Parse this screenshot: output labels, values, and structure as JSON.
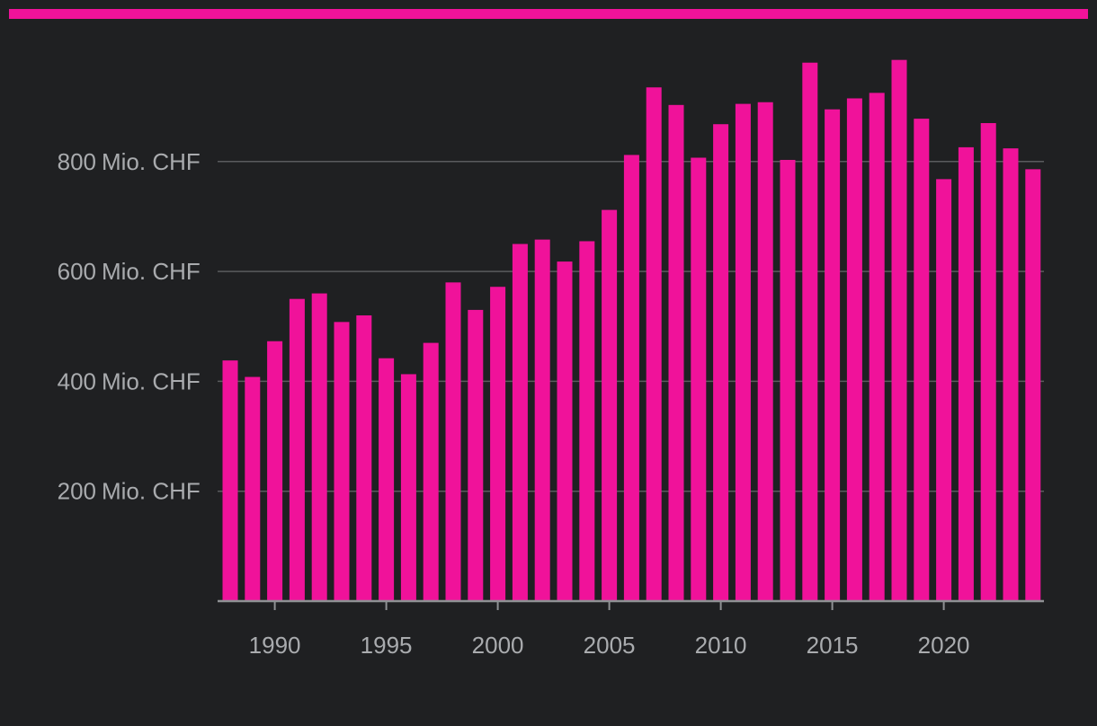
{
  "colors": {
    "background": "#1f2022",
    "accent": "#f0129a",
    "bar": "#f0129a",
    "grid": "#5a5b5e",
    "axis": "#8f9194",
    "text": "#a9abae"
  },
  "chart_data": {
    "type": "bar",
    "title": "",
    "xlabel": "",
    "ylabel": "",
    "unit_suffix": "Mio. CHF",
    "ylim": [
      0,
      1000
    ],
    "yticks": [
      200,
      400,
      600,
      800
    ],
    "ytick_labels": [
      {
        "num": "200",
        "unit": "Mio. CHF"
      },
      {
        "num": "400",
        "unit": "Mio. CHF"
      },
      {
        "num": "600",
        "unit": "Mio. CHF"
      },
      {
        "num": "800",
        "unit": "Mio. CHF"
      }
    ],
    "xticks": [
      "1990",
      "1995",
      "2000",
      "2005",
      "2010",
      "2015",
      "2020"
    ],
    "grid": true,
    "categories": [
      1988,
      1989,
      1990,
      1991,
      1992,
      1993,
      1994,
      1995,
      1996,
      1997,
      1998,
      1999,
      2000,
      2001,
      2002,
      2003,
      2004,
      2005,
      2006,
      2007,
      2008,
      2009,
      2010,
      2011,
      2012,
      2013,
      2014,
      2015,
      2016,
      2017,
      2018,
      2019,
      2020,
      2021,
      2022,
      2023,
      2024
    ],
    "values": [
      438,
      408,
      473,
      550,
      560,
      508,
      520,
      442,
      413,
      470,
      580,
      530,
      572,
      650,
      658,
      618,
      655,
      712,
      812,
      935,
      903,
      807,
      868,
      905,
      908,
      803,
      980,
      895,
      915,
      925,
      985,
      878,
      768,
      826,
      870,
      824,
      786
    ]
  }
}
